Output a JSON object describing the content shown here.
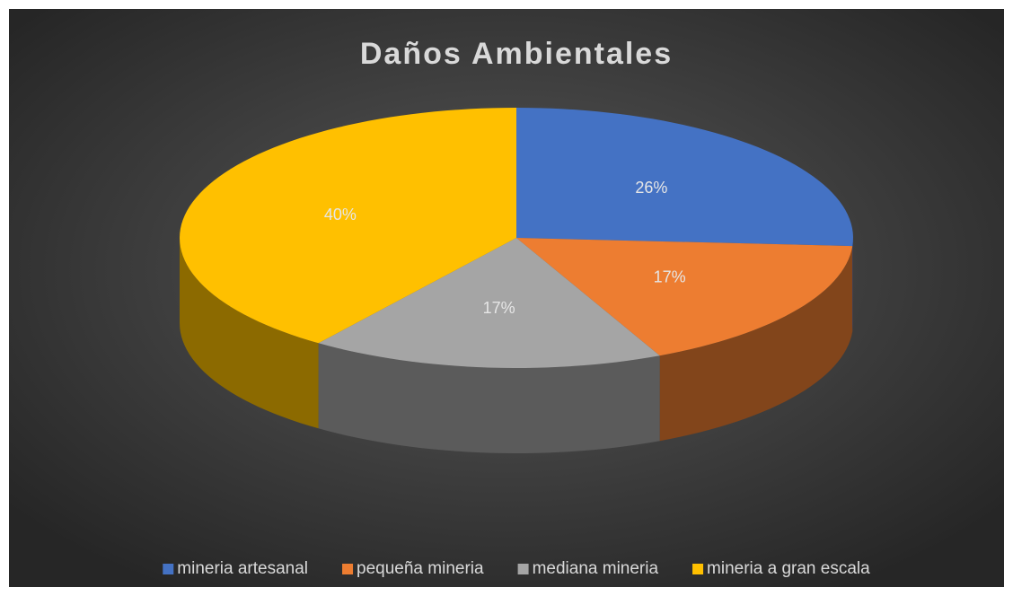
{
  "chart_data": {
    "type": "pie3d",
    "title": "Daños Ambientales",
    "categories": [
      "mineria artesanal",
      "pequeña mineria",
      "mediana mineria",
      "mineria a gran escala"
    ],
    "values": [
      26,
      17,
      17,
      40
    ],
    "value_labels": [
      "26%",
      "17%",
      "17%",
      "40%"
    ],
    "colors": [
      "#4472c4",
      "#ed7d31",
      "#a5a5a5",
      "#ffc000"
    ],
    "legend": "bottom"
  }
}
